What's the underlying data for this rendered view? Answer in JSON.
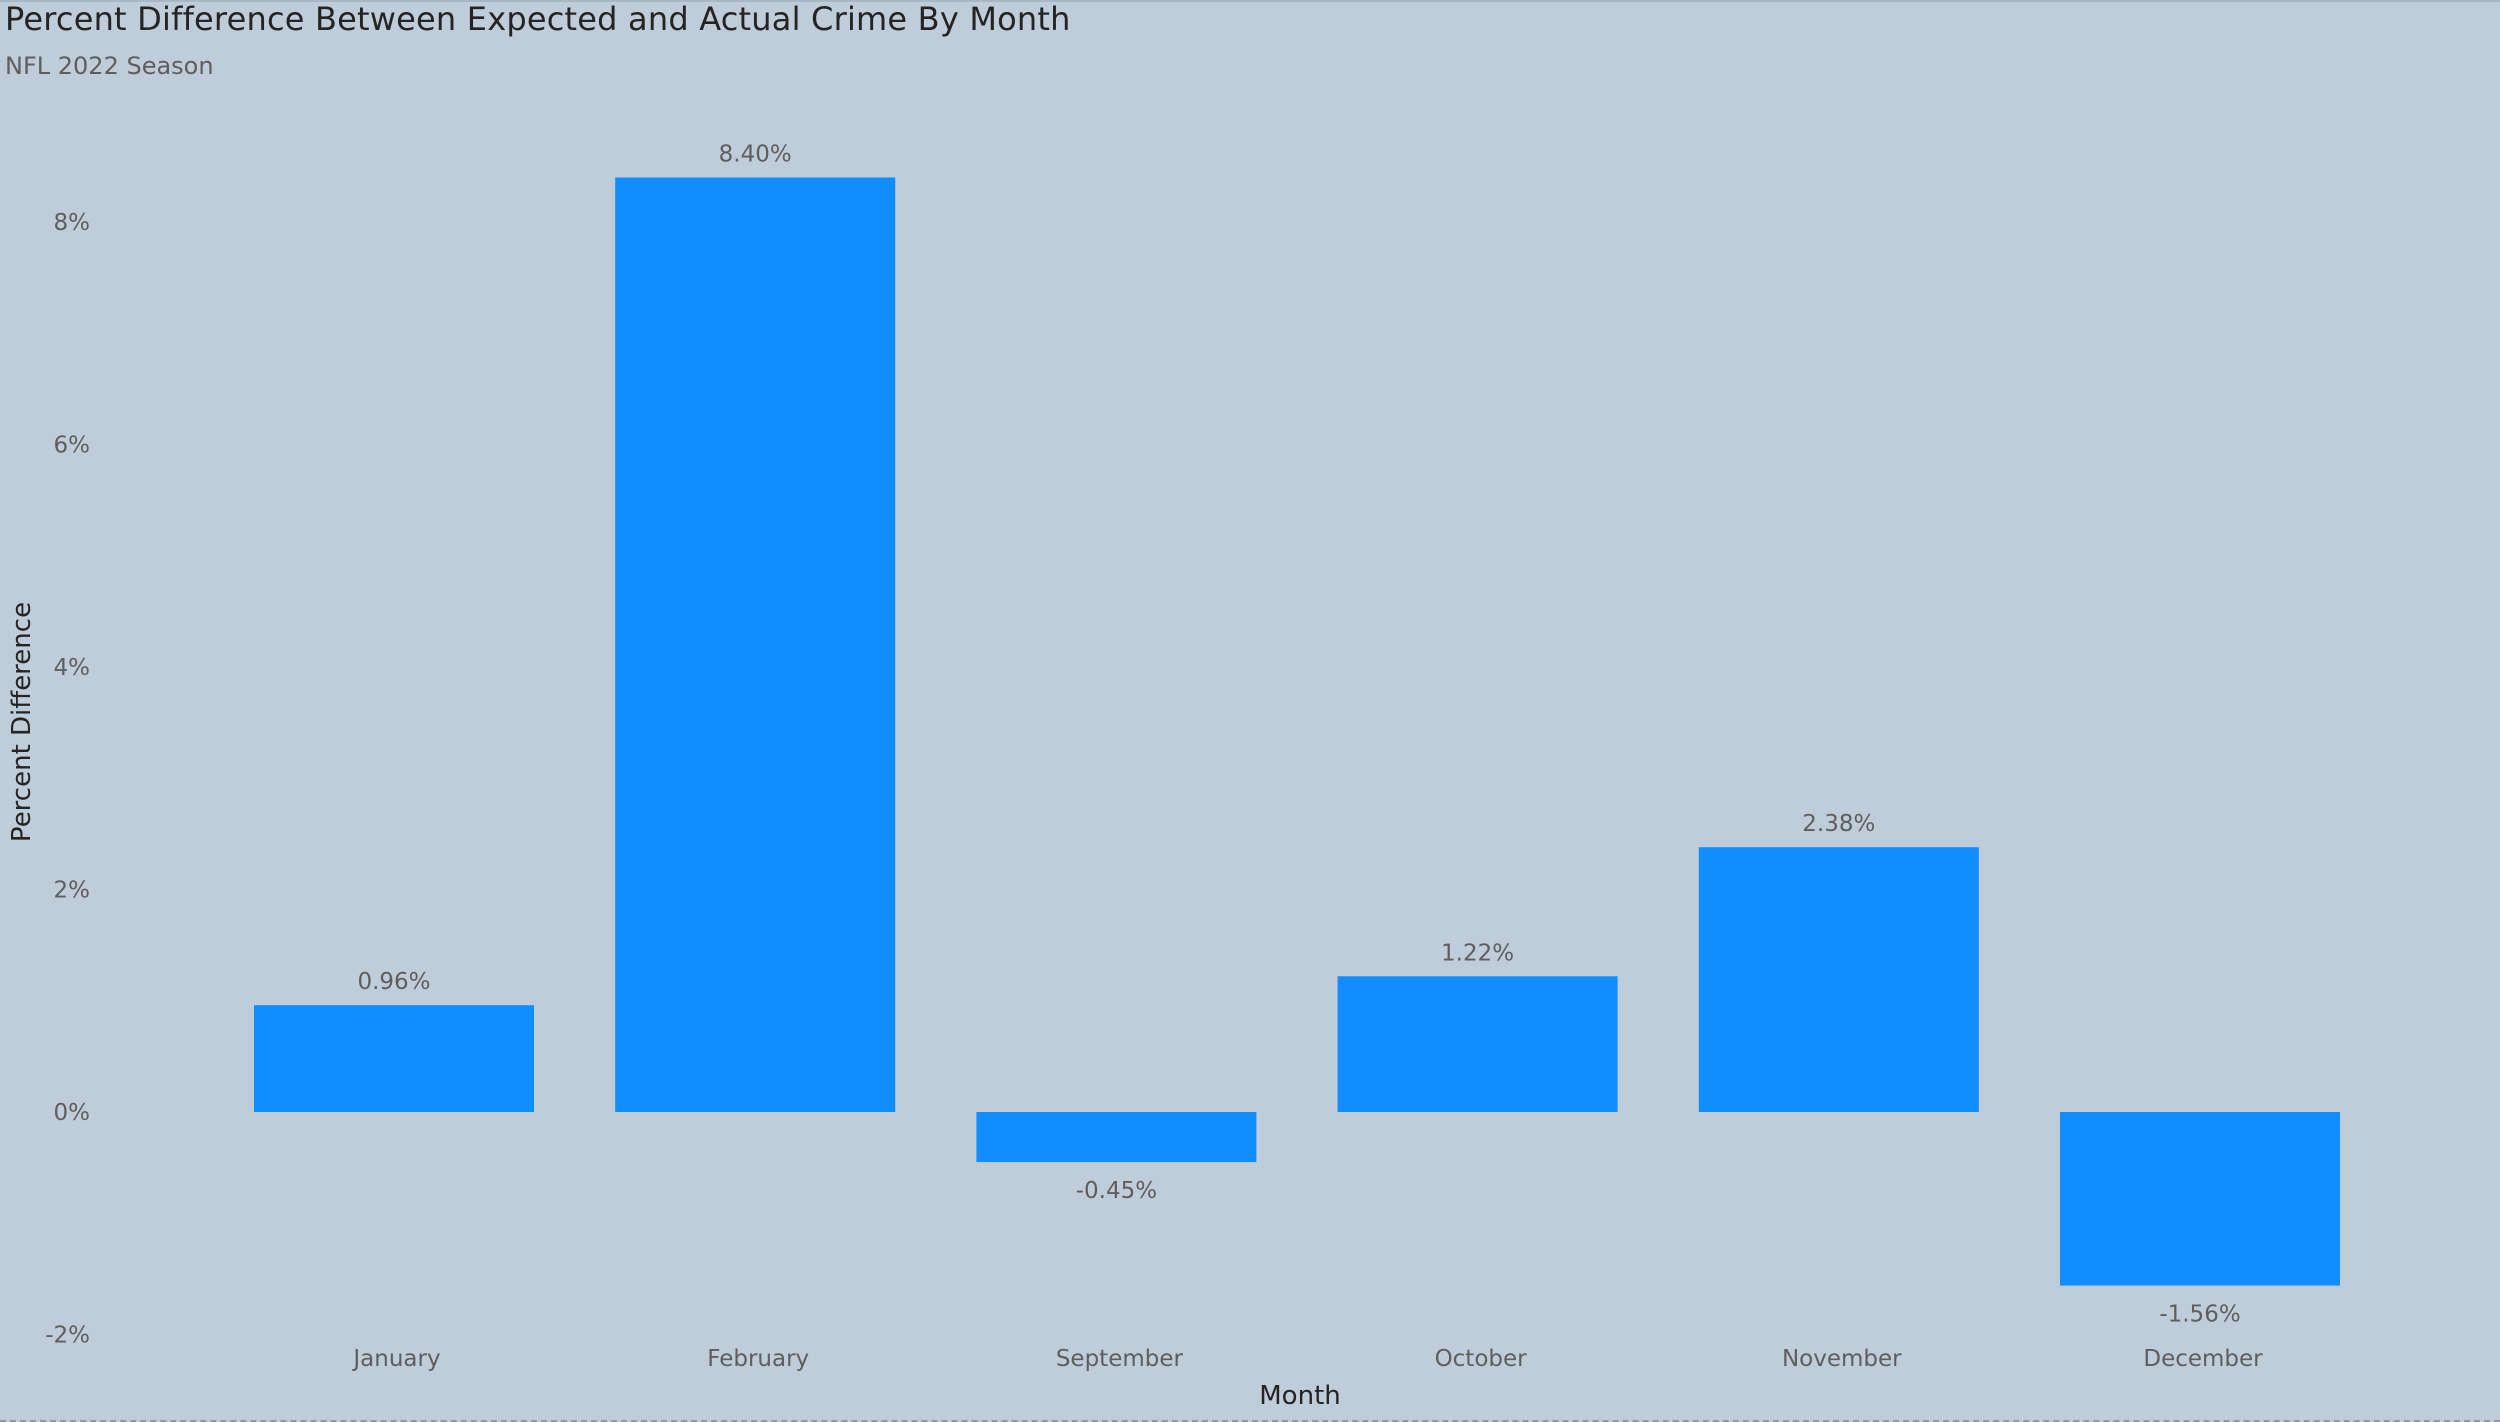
{
  "chart_data": {
    "type": "bar",
    "title": "Percent Difference Between Expected and Actual Crime By Month",
    "subtitle": "NFL 2022 Season",
    "xlabel": "Month",
    "ylabel": "Percent Difference",
    "categories": [
      "January",
      "February",
      "September",
      "October",
      "November",
      "December"
    ],
    "values": [
      0.96,
      8.4,
      -0.45,
      1.22,
      2.38,
      -1.56
    ],
    "data_labels": [
      "0.96%",
      "8.40%",
      "-0.45%",
      "1.22%",
      "2.38%",
      "-1.56%"
    ],
    "yticks": [
      -2,
      0,
      2,
      4,
      6,
      8
    ],
    "ytick_labels": [
      "-2%",
      "0%",
      "2%",
      "4%",
      "6%",
      "8%"
    ],
    "ylim": [
      -2,
      8.4
    ],
    "grid": false,
    "legend": "none",
    "bar_color": "#118DFF",
    "background_color": "#BFCCDA"
  }
}
